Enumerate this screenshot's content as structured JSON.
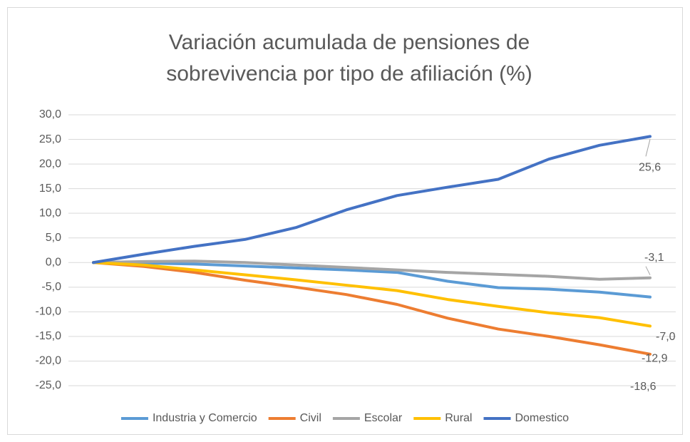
{
  "chart_data": {
    "type": "line",
    "title": "Variación acumulada de pensiones de sobrevivencia por tipo de afiliación (%)",
    "categories": [
      null,
      null,
      null,
      null,
      null,
      null,
      null,
      null,
      null,
      null,
      null,
      null
    ],
    "series": [
      {
        "name": "Industria y Comercio",
        "color": "#5b9bd5",
        "values": [
          0,
          -0.1,
          -0.3,
          -0.7,
          -1.1,
          -1.5,
          -2.0,
          -3.8,
          -5.1,
          -5.4,
          -6.0,
          -7.0
        ],
        "value_labels": [
          null,
          null,
          null,
          null,
          null,
          null,
          null,
          null,
          null,
          null,
          null,
          "-7,0"
        ]
      },
      {
        "name": "Civil",
        "color": "#ed7d31",
        "values": [
          0,
          -0.8,
          -2.0,
          -3.6,
          -5.0,
          -6.5,
          -8.5,
          -11.3,
          -13.5,
          -15.0,
          -16.7,
          -18.6
        ],
        "value_labels": [
          null,
          null,
          null,
          null,
          null,
          null,
          null,
          null,
          null,
          null,
          null,
          "-18,6"
        ]
      },
      {
        "name": "Escolar",
        "color": "#a5a5a5",
        "values": [
          0,
          0.2,
          0.3,
          0.0,
          -0.5,
          -1.0,
          -1.5,
          -2.0,
          -2.4,
          -2.8,
          -3.4,
          -3.1
        ],
        "value_labels": [
          null,
          null,
          null,
          null,
          null,
          null,
          null,
          null,
          null,
          null,
          null,
          "-3,1"
        ]
      },
      {
        "name": "Rural",
        "color": "#ffc000",
        "values": [
          0,
          -0.5,
          -1.5,
          -2.5,
          -3.5,
          -4.6,
          -5.7,
          -7.5,
          -8.9,
          -10.2,
          -11.2,
          -12.9
        ],
        "value_labels": [
          null,
          null,
          null,
          null,
          null,
          null,
          null,
          null,
          null,
          null,
          null,
          "-12,9"
        ]
      },
      {
        "name": "Domestico",
        "color": "#4472c4",
        "values": [
          0,
          1.7,
          3.3,
          4.7,
          7.1,
          10.7,
          13.6,
          15.3,
          16.9,
          21.0,
          23.8,
          25.6
        ],
        "value_labels": [
          null,
          null,
          null,
          null,
          null,
          null,
          null,
          null,
          null,
          null,
          null,
          "25,6"
        ]
      }
    ],
    "ylim": [
      -25,
      30
    ],
    "yticks": [
      {
        "value": -25,
        "label": "-25,0"
      },
      {
        "value": -20,
        "label": "-20,0"
      },
      {
        "value": -15,
        "label": "-15,0"
      },
      {
        "value": -10,
        "label": "-10,0"
      },
      {
        "value": -5,
        "label": "-5,0"
      },
      {
        "value": 0,
        "label": "0,0"
      },
      {
        "value": 5,
        "label": "5,0"
      },
      {
        "value": 10,
        "label": "10,0"
      },
      {
        "value": 15,
        "label": "15,0"
      },
      {
        "value": 20,
        "label": "20,0"
      },
      {
        "value": 25,
        "label": "25,0"
      },
      {
        "value": 30,
        "label": "30,0"
      }
    ],
    "grid": true,
    "legend": "bottom"
  }
}
